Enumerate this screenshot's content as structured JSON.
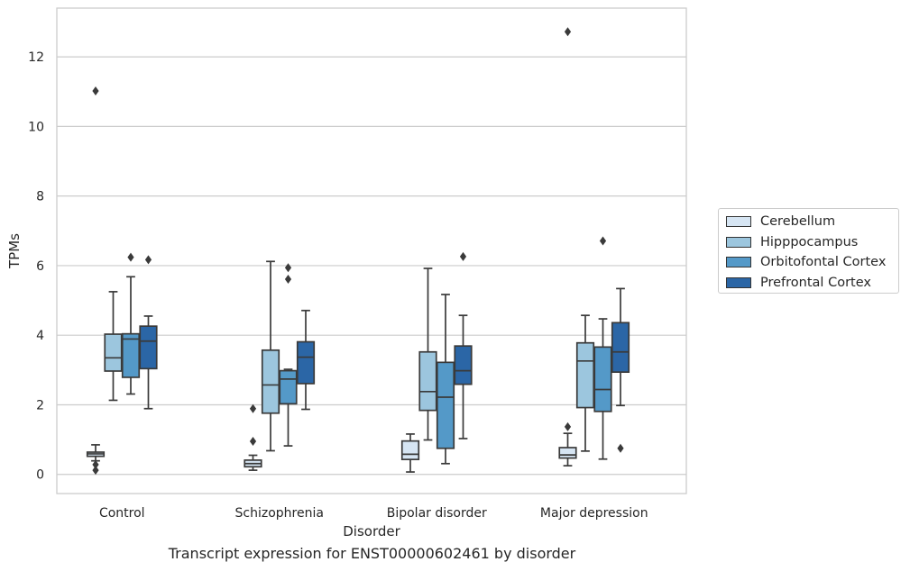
{
  "chart_data": {
    "type": "box",
    "ylabel": "TPMs",
    "xlabel": "Disorder",
    "caption": "Transcript expression for ENST00000602461 by disorder",
    "categories": [
      "Control",
      "Schizophrenia",
      "Bipolar disorder",
      "Major depression"
    ],
    "ylim": [
      -0.55,
      13.4
    ],
    "yticks": [
      0,
      2,
      4,
      6,
      8,
      10,
      12
    ],
    "grid": true,
    "legend_position": "right",
    "series": [
      {
        "name": "Cerebellum",
        "color": "#d6e5f3",
        "boxes": [
          {
            "whisker_low": 0.39,
            "q1": 0.52,
            "median": 0.59,
            "q3": 0.64,
            "whisker_high": 0.85,
            "outliers": [
              0.28,
              0.12,
              11.02
            ]
          },
          {
            "whisker_low": 0.12,
            "q1": 0.22,
            "median": 0.31,
            "q3": 0.41,
            "whisker_high": 0.55,
            "outliers": [
              1.89,
              0.95
            ]
          },
          {
            "whisker_low": 0.07,
            "q1": 0.43,
            "median": 0.58,
            "q3": 0.96,
            "whisker_high": 1.16,
            "outliers": []
          },
          {
            "whisker_low": 0.25,
            "q1": 0.47,
            "median": 0.56,
            "q3": 0.77,
            "whisker_high": 1.18,
            "outliers": [
              1.37,
              12.72
            ]
          }
        ]
      },
      {
        "name": "Hipppocampus",
        "color": "#9cc6de",
        "boxes": [
          {
            "whisker_low": 2.13,
            "q1": 2.97,
            "median": 3.35,
            "q3": 4.03,
            "whisker_high": 5.25,
            "outliers": []
          },
          {
            "whisker_low": 0.68,
            "q1": 1.76,
            "median": 2.57,
            "q3": 3.57,
            "whisker_high": 6.12,
            "outliers": []
          },
          {
            "whisker_low": 0.99,
            "q1": 1.84,
            "median": 2.38,
            "q3": 3.52,
            "whisker_high": 5.92,
            "outliers": []
          },
          {
            "whisker_low": 0.67,
            "q1": 1.92,
            "median": 3.26,
            "q3": 3.78,
            "whisker_high": 4.57,
            "outliers": []
          }
        ]
      },
      {
        "name": "Orbitofontal Cortex",
        "color": "#5499c8",
        "boxes": [
          {
            "whisker_low": 2.31,
            "q1": 2.79,
            "median": 3.89,
            "q3": 4.04,
            "whisker_high": 5.68,
            "outliers": [
              6.24
            ]
          },
          {
            "whisker_low": 0.82,
            "q1": 2.03,
            "median": 2.74,
            "q3": 2.98,
            "whisker_high": 3.02,
            "outliers": [
              5.94,
              5.61
            ]
          },
          {
            "whisker_low": 0.31,
            "q1": 0.75,
            "median": 2.22,
            "q3": 3.22,
            "whisker_high": 5.17,
            "outliers": []
          },
          {
            "whisker_low": 0.44,
            "q1": 1.81,
            "median": 2.44,
            "q3": 3.66,
            "whisker_high": 4.47,
            "outliers": [
              6.71
            ]
          }
        ]
      },
      {
        "name": "Prefrontal Cortex",
        "color": "#2b66a6",
        "boxes": [
          {
            "whisker_low": 1.89,
            "q1": 3.04,
            "median": 3.83,
            "q3": 4.26,
            "whisker_high": 4.55,
            "outliers": [
              6.17
            ]
          },
          {
            "whisker_low": 1.87,
            "q1": 2.61,
            "median": 3.37,
            "q3": 3.81,
            "whisker_high": 4.71,
            "outliers": []
          },
          {
            "whisker_low": 1.03,
            "q1": 2.59,
            "median": 2.98,
            "q3": 3.69,
            "whisker_high": 4.57,
            "outliers": [
              6.26
            ]
          },
          {
            "whisker_low": 1.98,
            "q1": 2.94,
            "median": 3.52,
            "q3": 4.36,
            "whisker_high": 5.34,
            "outliers": [
              0.75
            ]
          }
        ]
      }
    ]
  }
}
